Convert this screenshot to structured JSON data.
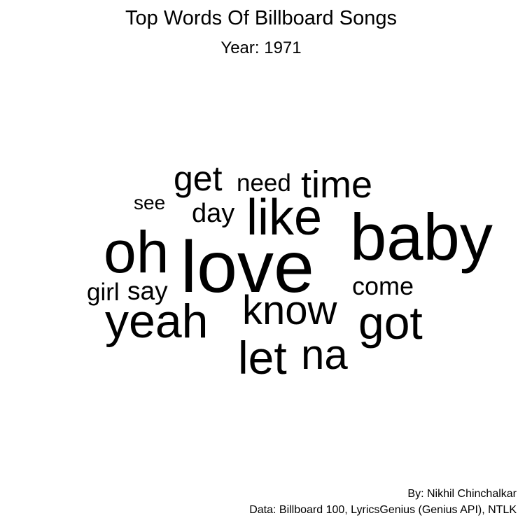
{
  "chart": {
    "title": "Top Words Of Billboard Songs",
    "subtitle": "Year: 1971"
  },
  "chart_data": {
    "type": "wordcloud",
    "title": "Top Words Of Billboard Songs",
    "subtitle": "Year: 1971",
    "words": [
      {
        "text": "love",
        "rank": 1
      },
      {
        "text": "baby",
        "rank": 2
      },
      {
        "text": "oh",
        "rank": 3
      },
      {
        "text": "like",
        "rank": 4
      },
      {
        "text": "yeah",
        "rank": 5
      },
      {
        "text": "know",
        "rank": 6
      },
      {
        "text": "got",
        "rank": 7
      },
      {
        "text": "let",
        "rank": 8
      },
      {
        "text": "na",
        "rank": 9
      },
      {
        "text": "time",
        "rank": 10
      },
      {
        "text": "get",
        "rank": 11
      },
      {
        "text": "come",
        "rank": 12
      },
      {
        "text": "day",
        "rank": 13
      },
      {
        "text": "say",
        "rank": 14
      },
      {
        "text": "need",
        "rank": 15
      },
      {
        "text": "girl",
        "rank": 16
      },
      {
        "text": "see",
        "rank": 17
      }
    ]
  },
  "caption": {
    "author": "By: Nikhil Chinchalkar",
    "source": "Data: Billboard 100, LyricsGenius (Genius API), NTLK"
  }
}
